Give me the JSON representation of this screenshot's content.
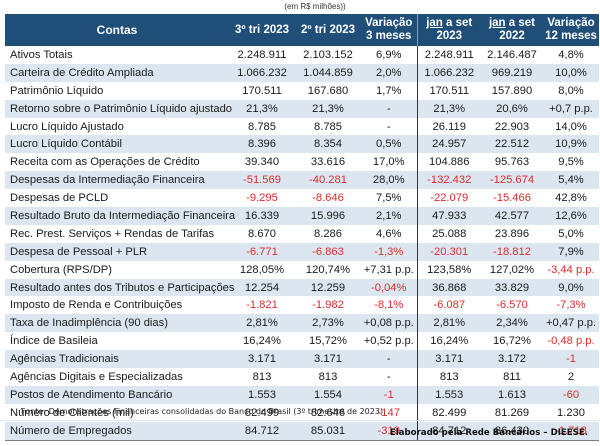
{
  "unit_note": "(em R$ milhões))",
  "headers": {
    "contas": "Contas",
    "q3_2023": "3º tri 2023",
    "q2_2023": "2º tri 2023",
    "var3_line1": "Variação",
    "var3_line2": "3 meses",
    "jan_set_2023_line1": "jan",
    "jan_set_2023_line1b": " a set",
    "jan_set_2023_line2": "2023",
    "jan_set_2022_line1": "jan",
    "jan_set_2022_line1b": " a set",
    "jan_set_2022_line2": "2022",
    "var12_line1": "Variação",
    "var12_line2": "12 meses"
  },
  "rows": [
    {
      "label": "Ativos Totais",
      "q3": "2.248.911",
      "q2": "2.103.152",
      "var3": "6,9%",
      "ytd23": "2.248.911",
      "ytd22": "2.146.487",
      "var12": "4,8%"
    },
    {
      "label": "Carteira de Crédito Ampliada",
      "q3": "1.066.232",
      "q2": "1.044.859",
      "var3": "2,0%",
      "ytd23": "1.066.232",
      "ytd22": "969.219",
      "var12": "10,0%"
    },
    {
      "label": "Patrimônio Líquido",
      "q3": "170.511",
      "q2": "167.680",
      "var3": "1,7%",
      "ytd23": "170.511",
      "ytd22": "157.890",
      "var12": "8,0%"
    },
    {
      "label": "Retorno sobre o Patrimônio Líquido ajustado",
      "q3": "21,3%",
      "q2": "21,3%",
      "var3": "-",
      "ytd23": "21,3%",
      "ytd22": "20,6%",
      "var12": "+0,7 p.p."
    },
    {
      "label": "Lucro Líquido Ajustado",
      "q3": "8.785",
      "q2": "8.785",
      "var3": "-",
      "ytd23": "26.119",
      "ytd22": "22.903",
      "var12": "14,0%"
    },
    {
      "label": "Lucro Líquido Contábil",
      "q3": "8.396",
      "q2": "8.354",
      "var3": "0,5%",
      "ytd23": "24.957",
      "ytd22": "22.512",
      "var12": "10,9%"
    },
    {
      "label": "Receita com as Operações de Crédito",
      "q3": "39.340",
      "q2": "33.616",
      "var3": "17,0%",
      "ytd23": "104.886",
      "ytd22": "95.763",
      "var12": "9,5%"
    },
    {
      "label": "Despesas da Intermediação Financeira",
      "q3": "-51.569",
      "q2": "-40.281",
      "var3": "28,0%",
      "ytd23": "-132.432",
      "ytd22": "-125.674",
      "var12": "5,4%"
    },
    {
      "label": "Despesas de PCLD",
      "q3": "-9.295",
      "q2": "-8.646",
      "var3": "7,5%",
      "ytd23": "-22.079",
      "ytd22": "-15.466",
      "var12": "42,8%"
    },
    {
      "label": "Resultado Bruto da Intermediação Financeira",
      "q3": "16.339",
      "q2": "15.996",
      "var3": "2,1%",
      "ytd23": "47.933",
      "ytd22": "42.577",
      "var12": "12,6%"
    },
    {
      "label": "Rec. Prest. Serviços + Rendas de Tarifas",
      "q3": "8.670",
      "q2": "8.286",
      "var3": "4,6%",
      "ytd23": "25.088",
      "ytd22": "23.896",
      "var12": "5,0%"
    },
    {
      "label": "Despesa de Pessoal + PLR",
      "q3": "-6.771",
      "q2": "-6.863",
      "var3": "-1,3%",
      "ytd23": "-20.301",
      "ytd22": "-18.812",
      "var12": "7,9%"
    },
    {
      "label": "Cobertura (RPS/DP)",
      "q3": "128,05%",
      "q2": "120,74%",
      "var3": "+7,31 p.p.",
      "ytd23": "123,58%",
      "ytd22": "127,02%",
      "var12": "-3,44 p.p."
    },
    {
      "label": "Resultado antes dos Tributos e Participações",
      "q3": "12.254",
      "q2": "12.259",
      "var3": "-0,04%",
      "ytd23": "36.868",
      "ytd22": "33.829",
      "var12": "9,0%"
    },
    {
      "label": "Imposto de Renda e Contribuições",
      "q3": "-1.821",
      "q2": "-1.982",
      "var3": "-8,1%",
      "ytd23": "-6.087",
      "ytd22": "-6.570",
      "var12": "-7,3%"
    },
    {
      "label": "Taxa de Inadimplência (90 dias)",
      "q3": "2,81%",
      "q2": "2,73%",
      "var3": "+0,08 p.p.",
      "ytd23": "2,81%",
      "ytd22": "2,34%",
      "var12": "+0,47 p.p."
    },
    {
      "label": "Índice de Basileia",
      "q3": "16,24%",
      "q2": "15,72%",
      "var3": "+0,52 p.p.",
      "ytd23": "16,24%",
      "ytd22": "16,72%",
      "var12": "-0,48 p.p."
    },
    {
      "label": "Agências Tradicionais",
      "q3": "3.171",
      "q2": "3.171",
      "var3": "-",
      "ytd23": "3.171",
      "ytd22": "3.172",
      "var12": "-1"
    },
    {
      "label": "Agências Digitais e Especializadas",
      "q3": "813",
      "q2": "813",
      "var3": "-",
      "ytd23": "813",
      "ytd22": "811",
      "var12": "2"
    },
    {
      "label": "Postos de Atendimento Bancário",
      "q3": "1.553",
      "q2": "1.554",
      "var3": "-1",
      "ytd23": "1.553",
      "ytd22": "1.613",
      "var12": "-60"
    },
    {
      "label": "Número de Clientes (mil)",
      "q3": "82.499",
      "q2": "82.646",
      "var3": "-147",
      "ytd23": "82.499",
      "ytd22": "81.269",
      "var12": "1.230"
    },
    {
      "label": "Número de Empregados",
      "q3": "84.712",
      "q2": "85.031",
      "var3": "-319",
      "ytd23": "84.712",
      "ytd22": "86.430",
      "var12": "-1.718"
    }
  ],
  "colors": {
    "header_bg": "#1f4e79",
    "header_text": "#ffffff",
    "stripe": "#dce6f1",
    "negative": "#e02b2b"
  },
  "source": "Fonte: Demonstrações Financeiras consolidadas do Banco do Brasil (3º trimestre de 2023).",
  "credit": "Elaborado pela Rede Bancários – DIEESE."
}
